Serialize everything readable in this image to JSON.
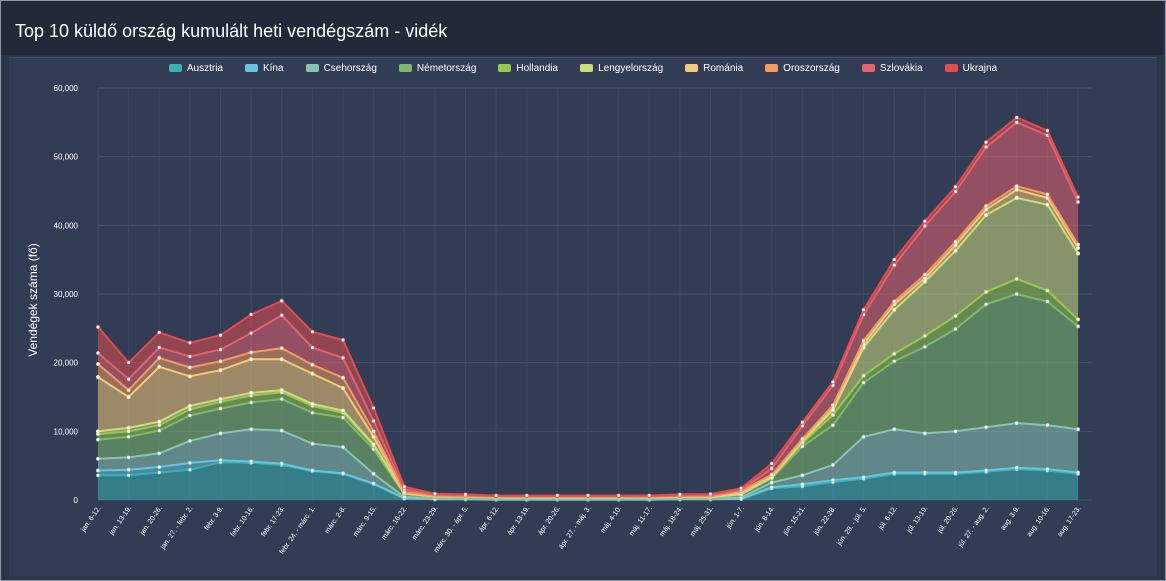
{
  "title": "Top 10 küldő ország kumulált heti vendégszám - vidék",
  "chart_data": {
    "type": "area",
    "stacked": true,
    "title": "Top 10 küldő ország kumulált heti vendégszám - vidék",
    "ylabel": "Vendégek száma (fő)",
    "xlabel": "",
    "ylim": [
      0,
      60000
    ],
    "yticks": [
      "0",
      "10,000",
      "20,000",
      "30,000",
      "40,000",
      "50,000",
      "60,000"
    ],
    "legend_position": "top",
    "grid": true,
    "categories": [
      "jan. 6-12.",
      "jan. 13-19.",
      "jan. 20-26.",
      "jan. 27. - febr. 2.",
      "febr. 3-9.",
      "febr. 10-16.",
      "febr. 17-23.",
      "febr. 24. - márc. 1.",
      "márc. 2-8.",
      "márc. 9-15.",
      "márc. 16-22.",
      "márc. 23-29.",
      "márc. 30. - ápr. 5.",
      "ápr. 6-12.",
      "ápr. 13-19.",
      "ápr. 20-26.",
      "ápr. 27. - máj. 3.",
      "máj. 4-10.",
      "máj. 11-17.",
      "máj. 18-24.",
      "máj. 25-31.",
      "jún. 1-7.",
      "jún. 8-14.",
      "jún. 15-21.",
      "jún. 22-28.",
      "jún. 29. - júl. 5.",
      "júl. 6-12.",
      "júl. 13-19.",
      "júl. 20-26.",
      "júl. 27. - aug. 2.",
      "aug. 3-9.",
      "aug. 10-16.",
      "aug. 17-23."
    ],
    "series": [
      {
        "name": "Ausztria",
        "color": "#3ab2b4",
        "values": [
          3600,
          3600,
          4000,
          4400,
          5500,
          5400,
          5100,
          4200,
          3800,
          2300,
          200,
          100,
          100,
          50,
          50,
          50,
          50,
          50,
          50,
          100,
          100,
          150,
          1700,
          2000,
          2600,
          3100,
          3800,
          3800,
          3800,
          4100,
          4500,
          4300,
          3800
        ]
      },
      {
        "name": "Kína",
        "color": "#66c5e0",
        "values": [
          700,
          800,
          800,
          1000,
          300,
          200,
          200,
          100,
          100,
          100,
          50,
          10,
          10,
          10,
          10,
          10,
          10,
          10,
          10,
          10,
          10,
          10,
          150,
          300,
          300,
          200,
          200,
          200,
          200,
          200,
          200,
          200,
          200
        ]
      },
      {
        "name": "Csehország",
        "color": "#89c4b2",
        "values": [
          1700,
          1800,
          2000,
          3200,
          3900,
          4700,
          4800,
          3900,
          3800,
          1400,
          200,
          100,
          100,
          100,
          100,
          100,
          100,
          100,
          100,
          100,
          100,
          200,
          700,
          1300,
          2200,
          5900,
          6300,
          5700,
          6000,
          6300,
          6500,
          6400,
          6300
        ]
      },
      {
        "name": "Németország",
        "color": "#7cb96e",
        "values": [
          2800,
          3000,
          3300,
          3700,
          3600,
          3900,
          4600,
          4500,
          4300,
          3600,
          400,
          200,
          150,
          100,
          100,
          100,
          100,
          100,
          100,
          100,
          100,
          400,
          600,
          4200,
          5800,
          7900,
          9900,
          12600,
          14900,
          17900,
          18800,
          18000,
          15000
        ]
      },
      {
        "name": "Hollandia",
        "color": "#96c94f",
        "values": [
          800,
          800,
          800,
          900,
          1000,
          1000,
          1000,
          1000,
          700,
          500,
          50,
          50,
          50,
          50,
          50,
          50,
          50,
          50,
          50,
          50,
          50,
          50,
          100,
          500,
          1500,
          1000,
          1100,
          1600,
          1900,
          1800,
          2200,
          1600,
          1000
        ]
      },
      {
        "name": "Lengyelország",
        "color": "#cddc7d",
        "values": [
          400,
          500,
          500,
          500,
          400,
          400,
          300,
          300,
          300,
          200,
          50,
          50,
          50,
          50,
          50,
          50,
          50,
          50,
          50,
          50,
          50,
          50,
          50,
          200,
          700,
          4100,
          6400,
          7900,
          9500,
          11200,
          11800,
          12500,
          9600
        ]
      },
      {
        "name": "Románia",
        "color": "#f3c978",
        "values": [
          7900,
          4500,
          8000,
          4300,
          4200,
          4900,
          4500,
          4400,
          3300,
          1100,
          100,
          50,
          50,
          50,
          50,
          50,
          50,
          50,
          50,
          100,
          100,
          300,
          300,
          200,
          500,
          500,
          800,
          500,
          800,
          800,
          1200,
          1000,
          800
        ]
      },
      {
        "name": "Oroszország",
        "color": "#f19b61",
        "values": [
          1900,
          1000,
          1300,
          1300,
          1300,
          1000,
          1600,
          1300,
          1500,
          800,
          100,
          50,
          50,
          50,
          50,
          50,
          50,
          50,
          50,
          50,
          50,
          100,
          100,
          200,
          200,
          500,
          400,
          500,
          500,
          500,
          500,
          500,
          500
        ]
      },
      {
        "name": "Szlovákia",
        "color": "#e4616e",
        "values": [
          1600,
          1600,
          1500,
          1600,
          1700,
          2800,
          4800,
          2500,
          2900,
          1500,
          400,
          150,
          100,
          80,
          80,
          80,
          80,
          80,
          100,
          100,
          150,
          200,
          900,
          1900,
          2900,
          3800,
          5300,
          7100,
          7300,
          8600,
          9300,
          8600,
          6200
        ]
      },
      {
        "name": "Ukrajna",
        "color": "#df4d4f",
        "values": [
          3800,
          2400,
          2200,
          2000,
          2100,
          2700,
          2100,
          2300,
          2600,
          1900,
          400,
          150,
          150,
          100,
          100,
          100,
          100,
          100,
          100,
          150,
          150,
          250,
          700,
          500,
          500,
          700,
          800,
          700,
          700,
          700,
          700,
          700,
          700
        ]
      }
    ]
  }
}
